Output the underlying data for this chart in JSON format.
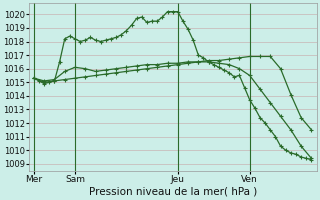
{
  "xlabel": "Pression niveau de la mer( hPa )",
  "bg_color": "#cceee8",
  "grid_color_major": "#c8b4b4",
  "grid_color_minor": "#ddc8c8",
  "line_color": "#2a6b2a",
  "ylim": [
    1008.5,
    1020.8
  ],
  "yticks": [
    1009,
    1010,
    1011,
    1012,
    1013,
    1014,
    1015,
    1016,
    1017,
    1018,
    1019,
    1020
  ],
  "day_labels": [
    "Mer",
    "Sam",
    "Jeu",
    "Ven"
  ],
  "day_positions": [
    0,
    4,
    14,
    21
  ],
  "vline_positions": [
    0,
    4,
    14,
    21
  ],
  "total_points": 28,
  "line1_x": [
    0,
    0.5,
    1,
    1.5,
    2,
    2.5,
    3,
    3.5,
    4,
    4.5,
    5,
    5.5,
    6,
    6.5,
    7,
    7.5,
    8,
    8.5,
    9,
    9.5,
    10,
    10.5,
    11,
    11.5,
    12,
    12.5,
    13,
    13.5,
    14,
    14.5,
    15,
    15.5,
    16,
    16.5,
    17,
    17.5,
    18,
    18.5,
    19,
    19.5,
    20,
    20.5,
    21,
    21.5,
    22,
    22.5,
    23,
    23.5,
    24,
    24.5,
    25,
    25.5,
    26,
    26.5,
    27
  ],
  "line1_y": [
    1015.3,
    1015.1,
    1014.9,
    1015.0,
    1015.1,
    1016.5,
    1018.2,
    1018.4,
    1018.2,
    1018.0,
    1018.1,
    1018.3,
    1018.1,
    1018.0,
    1018.1,
    1018.2,
    1018.3,
    1018.5,
    1018.8,
    1019.2,
    1019.7,
    1019.8,
    1019.4,
    1019.5,
    1019.5,
    1019.8,
    1020.2,
    1020.2,
    1020.2,
    1019.5,
    1018.9,
    1018.1,
    1017.0,
    1016.8,
    1016.5,
    1016.3,
    1016.1,
    1015.9,
    1015.7,
    1015.4,
    1015.5,
    1014.6,
    1013.7,
    1013.1,
    1012.4,
    1012.0,
    1011.5,
    1011.0,
    1010.3,
    1010.0,
    1009.8,
    1009.7,
    1009.5,
    1009.4,
    1009.3
  ],
  "line2_x": [
    0,
    1,
    2,
    3,
    4,
    5,
    6,
    7,
    8,
    9,
    10,
    11,
    12,
    13,
    14,
    15,
    16,
    17,
    18,
    19,
    20,
    21,
    22,
    23,
    24,
    25,
    26,
    27
  ],
  "line2_y": [
    1015.3,
    1015.1,
    1015.2,
    1015.8,
    1016.1,
    1016.0,
    1015.8,
    1015.9,
    1016.0,
    1016.1,
    1016.2,
    1016.3,
    1016.3,
    1016.4,
    1016.4,
    1016.5,
    1016.5,
    1016.6,
    1016.6,
    1016.7,
    1016.8,
    1016.9,
    1016.9,
    1016.9,
    1016.0,
    1014.1,
    1012.4,
    1011.5
  ],
  "line3_x": [
    0,
    1,
    2,
    3,
    4,
    5,
    6,
    7,
    8,
    9,
    10,
    11,
    12,
    13,
    14,
    15,
    16,
    17,
    18,
    19,
    20,
    21,
    22,
    23,
    24,
    25,
    26,
    27
  ],
  "line3_y": [
    1015.3,
    1015.0,
    1015.1,
    1015.2,
    1015.3,
    1015.4,
    1015.5,
    1015.6,
    1015.7,
    1015.8,
    1015.9,
    1016.0,
    1016.1,
    1016.2,
    1016.3,
    1016.4,
    1016.5,
    1016.5,
    1016.4,
    1016.3,
    1016.0,
    1015.5,
    1014.5,
    1013.5,
    1012.5,
    1011.5,
    1010.3,
    1009.4
  ]
}
